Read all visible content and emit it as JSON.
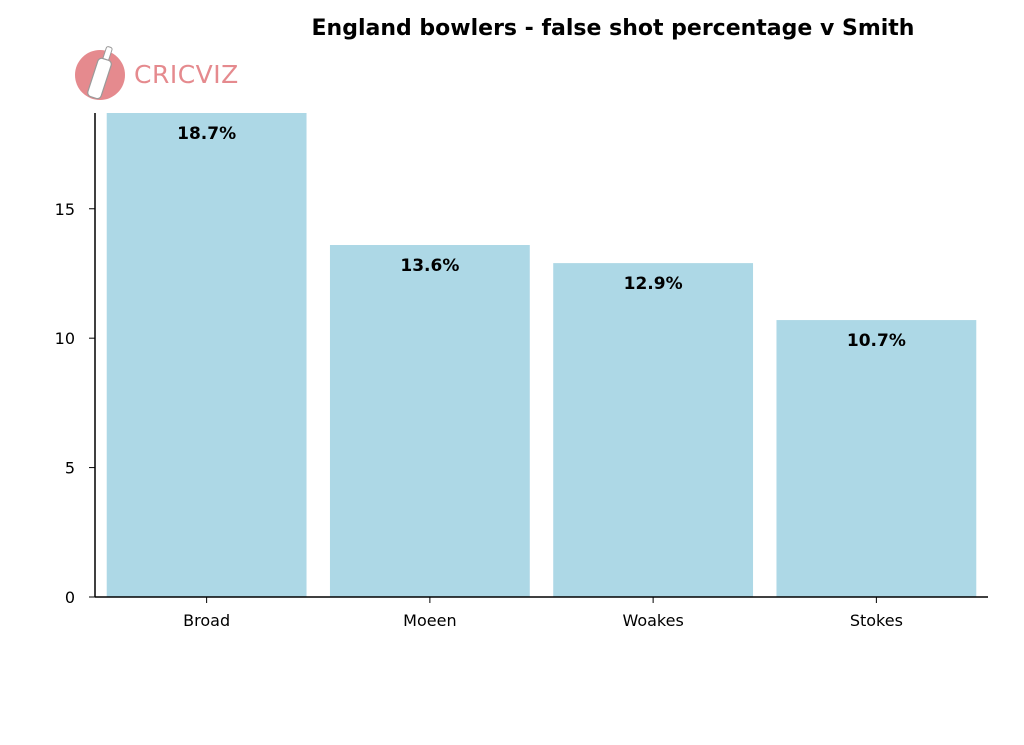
{
  "brand": {
    "logo_text": "CRICVIZ",
    "logo_icon": "cricket-bat-ball-icon",
    "logo_color": "#e58a8e"
  },
  "chart_data": {
    "type": "bar",
    "title": "England bowlers - false shot percentage v Smith",
    "xlabel": "",
    "ylabel": "",
    "categories": [
      "Broad",
      "Moeen",
      "Woakes",
      "Stokes"
    ],
    "values": [
      18.7,
      13.6,
      12.9,
      10.7
    ],
    "data_labels": [
      "18.7%",
      "13.6%",
      "12.9%",
      "10.7%"
    ],
    "ylim": [
      0,
      18.7
    ],
    "yticks": [
      0,
      5,
      10,
      15
    ],
    "bar_color": "#add8e6",
    "grid": false,
    "legend": "none"
  }
}
